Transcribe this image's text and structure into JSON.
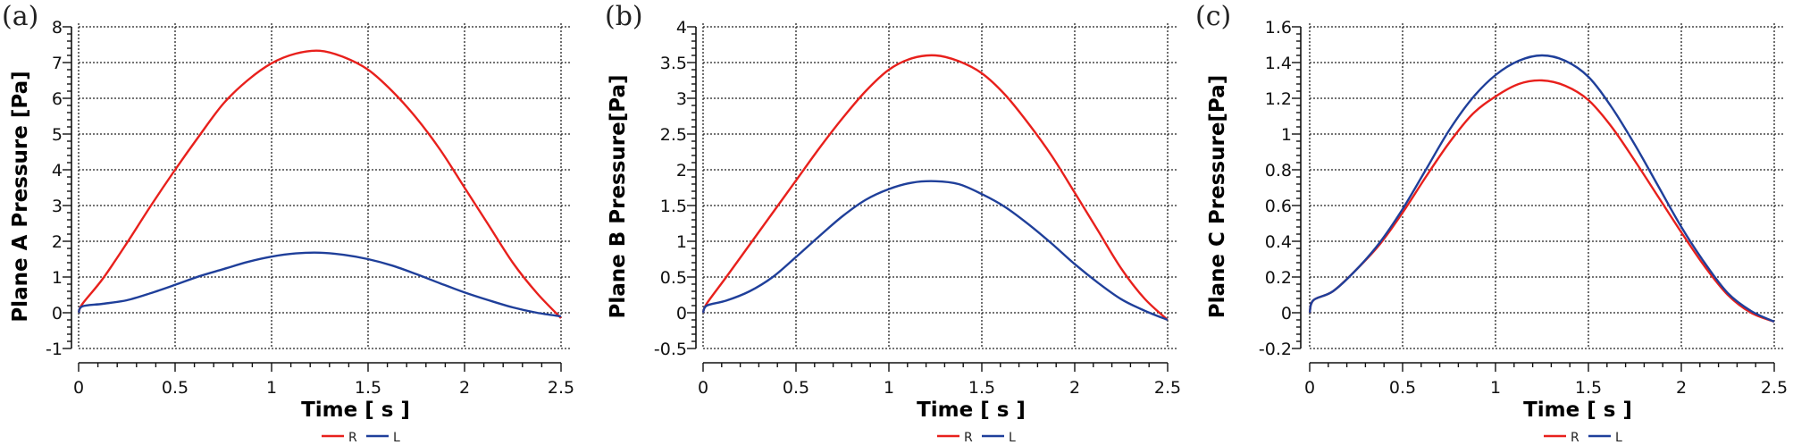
{
  "figure": {
    "panels": [
      {
        "tag": "(a)",
        "ylabel": "Plane A Pressure [Pa]",
        "xlabel": "Time [ s ]"
      },
      {
        "tag": "(b)",
        "ylabel": "Plane B Pressure[Pa]",
        "xlabel": "Time [ s ]"
      },
      {
        "tag": "(c)",
        "ylabel": "Plane C  Pressure[Pa]",
        "xlabel": "Time [ s ]"
      }
    ],
    "legend": [
      {
        "label": "R",
        "color": "#e8201c"
      },
      {
        "label": "L",
        "color": "#1f3f9a"
      }
    ]
  },
  "chart_data": [
    {
      "type": "line",
      "title": "(a)",
      "xlabel": "Time [ s ]",
      "ylabel": "Plane A Pressure [Pa]",
      "xlim": [
        0,
        2.5
      ],
      "ylim": [
        -1,
        8
      ],
      "xticks": [
        "0",
        "0.5",
        "1",
        "1.5",
        "2",
        "2.5"
      ],
      "yticks": [
        "-1",
        "0",
        "1",
        "2",
        "3",
        "4",
        "5",
        "6",
        "7",
        "8"
      ],
      "grid": true,
      "legend_position": "bottom",
      "x": [
        0,
        0.02,
        0.125,
        0.25,
        0.375,
        0.5,
        0.625,
        0.75,
        0.875,
        1.0,
        1.125,
        1.25,
        1.375,
        1.5,
        1.625,
        1.75,
        1.875,
        2.0,
        2.125,
        2.25,
        2.375,
        2.5
      ],
      "series": [
        {
          "name": "R",
          "color": "#e8201c",
          "values": [
            0,
            0.25,
            0.95,
            1.95,
            3.0,
            4.0,
            4.95,
            5.85,
            6.5,
            6.98,
            7.25,
            7.33,
            7.15,
            6.8,
            6.2,
            5.45,
            4.55,
            3.5,
            2.45,
            1.4,
            0.55,
            -0.15
          ]
        },
        {
          "name": "L",
          "color": "#1f3f9a",
          "values": [
            0,
            0.18,
            0.25,
            0.35,
            0.55,
            0.78,
            1.02,
            1.22,
            1.42,
            1.57,
            1.66,
            1.68,
            1.62,
            1.5,
            1.32,
            1.08,
            0.82,
            0.57,
            0.35,
            0.15,
            0.0,
            -0.1
          ]
        }
      ]
    },
    {
      "type": "line",
      "title": "(b)",
      "xlabel": "Time [ s ]",
      "ylabel": "Plane B Pressure[Pa]",
      "xlim": [
        0,
        2.5
      ],
      "ylim": [
        -0.5,
        4
      ],
      "xticks": [
        "0",
        "0.5",
        "1",
        "1.5",
        "2",
        "2.5"
      ],
      "yticks": [
        "-0.5",
        "0",
        "0.5",
        "1",
        "1.5",
        "2",
        "2.5",
        "3",
        "3.5",
        "4"
      ],
      "grid": true,
      "legend_position": "bottom",
      "x": [
        0,
        0.02,
        0.125,
        0.25,
        0.375,
        0.5,
        0.625,
        0.75,
        0.875,
        1.0,
        1.125,
        1.25,
        1.375,
        1.5,
        1.625,
        1.75,
        1.875,
        2.0,
        2.125,
        2.25,
        2.375,
        2.5
      ],
      "series": [
        {
          "name": "R",
          "color": "#e8201c",
          "values": [
            0,
            0.13,
            0.5,
            0.95,
            1.4,
            1.85,
            2.3,
            2.72,
            3.1,
            3.4,
            3.56,
            3.6,
            3.52,
            3.35,
            3.05,
            2.65,
            2.2,
            1.68,
            1.15,
            0.62,
            0.2,
            -0.1
          ]
        },
        {
          "name": "L",
          "color": "#1f3f9a",
          "values": [
            0,
            0.1,
            0.17,
            0.3,
            0.5,
            0.78,
            1.07,
            1.35,
            1.58,
            1.73,
            1.82,
            1.84,
            1.8,
            1.66,
            1.48,
            1.24,
            0.97,
            0.68,
            0.42,
            0.19,
            0.03,
            -0.1
          ]
        }
      ]
    },
    {
      "type": "line",
      "title": "(c)",
      "xlabel": "Time [ s ]",
      "ylabel": "Plane C  Pressure[Pa]",
      "xlim": [
        0,
        2.5
      ],
      "ylim": [
        -0.2,
        1.6
      ],
      "xticks": [
        "0",
        "0.5",
        "1",
        "1.5",
        "2",
        "2.5"
      ],
      "yticks": [
        "-0.2",
        "0",
        "0.2",
        "0.4",
        "0.6",
        "0.8",
        "1",
        "1.2",
        "1.4",
        "1.6"
      ],
      "grid": true,
      "legend_position": "bottom",
      "x": [
        0,
        0.02,
        0.125,
        0.25,
        0.375,
        0.5,
        0.625,
        0.75,
        0.875,
        1.0,
        1.125,
        1.25,
        1.375,
        1.5,
        1.625,
        1.75,
        1.875,
        2.0,
        2.125,
        2.25,
        2.375,
        2.5
      ],
      "series": [
        {
          "name": "R",
          "color": "#e8201c",
          "values": [
            0,
            0.07,
            0.12,
            0.24,
            0.38,
            0.56,
            0.76,
            0.95,
            1.11,
            1.21,
            1.28,
            1.3,
            1.27,
            1.19,
            1.04,
            0.85,
            0.65,
            0.45,
            0.26,
            0.1,
            0.0,
            -0.05
          ]
        },
        {
          "name": "L",
          "color": "#1f3f9a",
          "values": [
            0,
            0.07,
            0.12,
            0.24,
            0.39,
            0.58,
            0.8,
            1.02,
            1.2,
            1.33,
            1.41,
            1.44,
            1.41,
            1.32,
            1.15,
            0.94,
            0.71,
            0.48,
            0.28,
            0.11,
            0.01,
            -0.05
          ]
        }
      ]
    }
  ]
}
